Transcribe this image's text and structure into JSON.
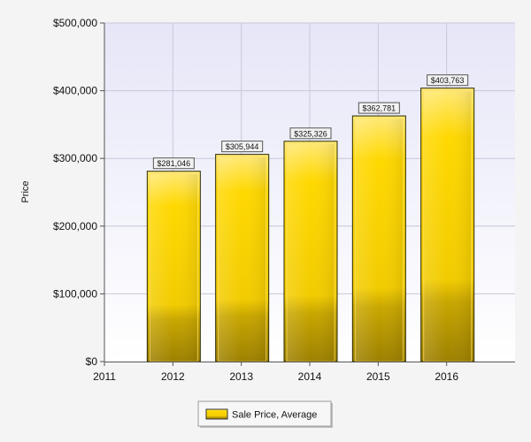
{
  "chart_data": {
    "type": "bar",
    "title": "",
    "xlabel": "",
    "ylabel": "Price",
    "x_ticks": [
      "2011",
      "2012",
      "2013",
      "2014",
      "2015",
      "2016"
    ],
    "categories": [
      "2012",
      "2013",
      "2014",
      "2015",
      "2016"
    ],
    "series": [
      {
        "name": "Sale Price, Average",
        "values": [
          281046,
          305944,
          325326,
          362781,
          403763
        ],
        "labels": [
          "$281,046",
          "$305,944",
          "$325,326",
          "$362,781",
          "$403,763"
        ],
        "color": "#f5d000"
      }
    ],
    "ylim": [
      0,
      500000
    ],
    "y_ticks": [
      {
        "value": 0,
        "label": "$0"
      },
      {
        "value": 100000,
        "label": "$100,000"
      },
      {
        "value": 200000,
        "label": "$200,000"
      },
      {
        "value": 300000,
        "label": "$300,000"
      },
      {
        "value": 400000,
        "label": "$400,000"
      },
      {
        "value": 500000,
        "label": "$500,000"
      }
    ],
    "grid": true,
    "legend": "bottom-center"
  }
}
